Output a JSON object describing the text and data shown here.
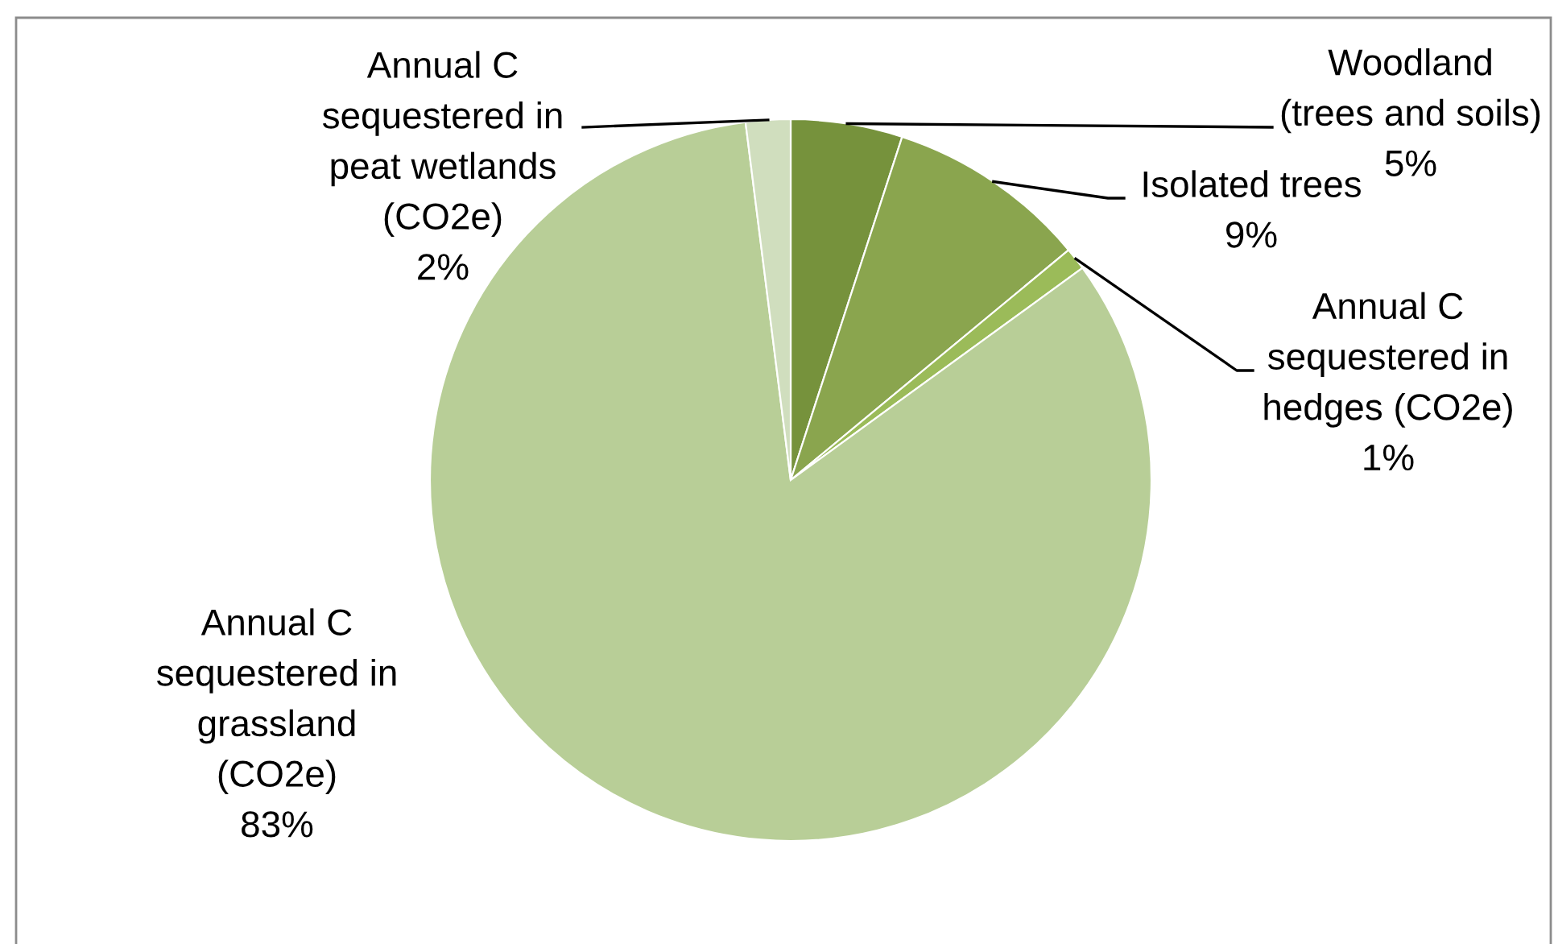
{
  "chart_data": {
    "type": "pie",
    "categories": [
      "Woodland\n(trees and soils)",
      "Isolated trees",
      "Annual C\nsequestered in\nhedges (CO2e)",
      "Annual C\nsequestered in\ngrassland\n(CO2e)",
      "Annual C\nsequestered in\npeat wetlands\n(CO2e)"
    ],
    "values": [
      5,
      9,
      1,
      83,
      2
    ],
    "colors": [
      "#76923c",
      "#8aa54e",
      "#9bbb59",
      "#b8ce97",
      "#d0debe"
    ],
    "value_labels": [
      "5%",
      "9%",
      "1%",
      "83%",
      "2%"
    ]
  }
}
